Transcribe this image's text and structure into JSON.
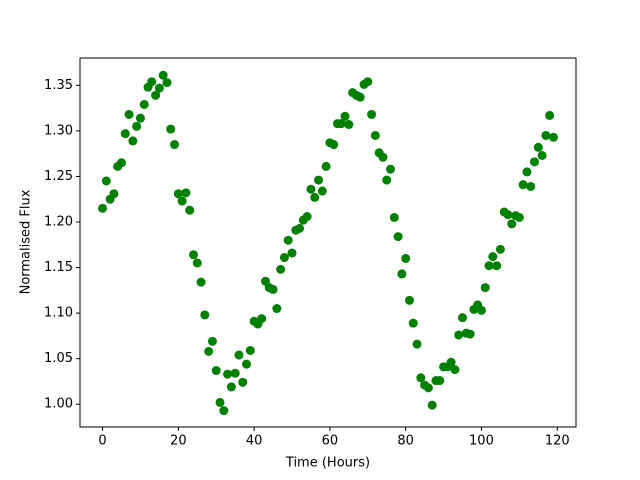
{
  "chart_data": {
    "type": "scatter",
    "xlabel": "Time (Hours)",
    "ylabel": "Normalised Flux",
    "color": "green",
    "x": [
      0,
      1,
      2,
      3,
      4,
      5,
      6,
      7,
      8,
      9,
      10,
      11,
      12,
      13,
      14,
      15,
      16,
      17,
      18,
      19,
      20,
      21,
      22,
      23,
      24,
      25,
      26,
      27,
      28,
      29,
      30,
      31,
      32,
      33,
      34,
      35,
      36,
      37,
      38,
      39,
      40,
      41,
      42,
      43,
      44,
      45,
      46,
      47,
      48,
      49,
      50,
      51,
      52,
      53,
      54,
      55,
      56,
      57,
      58,
      59,
      60,
      61,
      62,
      63,
      64,
      65,
      66,
      67,
      68,
      69,
      70,
      71,
      72,
      73,
      74,
      75,
      76,
      77,
      78,
      79,
      80,
      81,
      82,
      83,
      84,
      85,
      86,
      87,
      88,
      89,
      90,
      91,
      92,
      93,
      94,
      95,
      96,
      97,
      98,
      99,
      100,
      101,
      102,
      103,
      104,
      105,
      106,
      107,
      108,
      109,
      110,
      111,
      112,
      113,
      114,
      115,
      116,
      117,
      118,
      119
    ],
    "values": [
      1.215,
      1.245,
      1.225,
      1.231,
      1.261,
      1.265,
      1.297,
      1.318,
      1.289,
      1.305,
      1.314,
      1.329,
      1.348,
      1.354,
      1.339,
      1.347,
      1.361,
      1.353,
      1.302,
      1.285,
      1.231,
      1.223,
      1.232,
      1.213,
      1.164,
      1.155,
      1.134,
      1.098,
      1.058,
      1.069,
      1.037,
      1.002,
      0.993,
      1.033,
      1.019,
      1.034,
      1.054,
      1.024,
      1.044,
      1.059,
      1.091,
      1.088,
      1.094,
      1.135,
      1.128,
      1.126,
      1.105,
      1.148,
      1.161,
      1.18,
      1.166,
      1.191,
      1.193,
      1.202,
      1.206,
      1.236,
      1.227,
      1.246,
      1.234,
      1.261,
      1.287,
      1.285,
      1.308,
      1.308,
      1.316,
      1.307,
      1.342,
      1.339,
      1.337,
      1.351,
      1.354,
      1.318,
      1.295,
      1.276,
      1.271,
      1.246,
      1.258,
      1.205,
      1.184,
      1.143,
      1.16,
      1.114,
      1.089,
      1.066,
      1.029,
      1.021,
      1.018,
      0.999,
      1.026,
      1.026,
      1.041,
      1.041,
      1.046,
      1.038,
      1.076,
      1.095,
      1.078,
      1.077,
      1.104,
      1.109,
      1.103,
      1.128,
      1.152,
      1.162,
      1.152,
      1.17,
      1.211,
      1.208,
      1.198,
      1.207,
      1.205,
      1.241,
      1.255,
      1.239,
      1.266,
      1.282,
      1.273,
      1.295,
      1.317,
      1.293
    ],
    "xlim": [
      -5.95,
      124.95
    ],
    "ylim": [
      0.975,
      1.38
    ],
    "xticks": [
      0,
      20,
      40,
      60,
      80,
      100,
      120
    ],
    "yticks": [
      {
        "value": 1.0,
        "label": "1.00"
      },
      {
        "value": 1.05,
        "label": "1.05"
      },
      {
        "value": 1.1,
        "label": "1.10"
      },
      {
        "value": 1.15,
        "label": "1.15"
      },
      {
        "value": 1.2,
        "label": "1.20"
      },
      {
        "value": 1.25,
        "label": "1.25"
      },
      {
        "value": 1.3,
        "label": "1.30"
      },
      {
        "value": 1.35,
        "label": "1.35"
      }
    ]
  }
}
